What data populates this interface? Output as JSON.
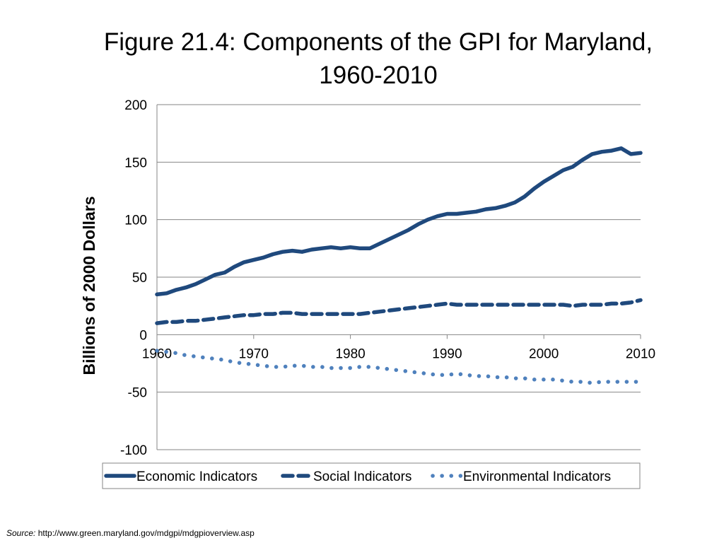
{
  "chart_data": {
    "type": "line",
    "title": "Figure 21.4: Components of the GPI for Maryland, 1960-2010",
    "title_lines": [
      "Figure 21.4: Components of the GPI for Maryland,",
      "1960-2010"
    ],
    "xlabel": "",
    "ylabel": "Billions of 2000 Dollars",
    "xlim": [
      1960,
      2010
    ],
    "ylim": [
      -100,
      200
    ],
    "x_ticks": [
      1960,
      1970,
      1980,
      1990,
      2000,
      2010
    ],
    "x_tick_labels": [
      "1960",
      "1970",
      "1980",
      "1990",
      "2000",
      "2010"
    ],
    "y_ticks": [
      200,
      150,
      100,
      50,
      0,
      -50,
      -100
    ],
    "y_tick_labels": [
      "200",
      "150",
      "100",
      "50",
      "0",
      "-50",
      "-100"
    ],
    "grid": true,
    "legend": "bottom",
    "x": [
      1960,
      1961,
      1962,
      1963,
      1964,
      1965,
      1966,
      1967,
      1968,
      1969,
      1970,
      1971,
      1972,
      1973,
      1974,
      1975,
      1976,
      1977,
      1978,
      1979,
      1980,
      1981,
      1982,
      1983,
      1984,
      1985,
      1986,
      1987,
      1988,
      1989,
      1990,
      1991,
      1992,
      1993,
      1994,
      1995,
      1996,
      1997,
      1998,
      1999,
      2000,
      2001,
      2002,
      2003,
      2004,
      2005,
      2006,
      2007,
      2008,
      2009,
      2010
    ],
    "series": [
      {
        "name": "Economic Indicators",
        "style": "solid",
        "color": "#1f497d",
        "values": [
          35,
          36,
          39,
          41,
          44,
          48,
          52,
          54,
          59,
          63,
          65,
          67,
          70,
          72,
          73,
          72,
          74,
          75,
          76,
          75,
          76,
          75,
          75,
          79,
          83,
          87,
          91,
          96,
          100,
          103,
          105,
          105,
          106,
          107,
          109,
          110,
          112,
          115,
          120,
          127,
          133,
          138,
          143,
          146,
          152,
          157,
          159,
          160,
          162,
          157,
          158
        ]
      },
      {
        "name": "Social Indicators",
        "style": "dash",
        "color": "#1f497d",
        "values": [
          10,
          11,
          11,
          12,
          12,
          13,
          14,
          15,
          16,
          17,
          17,
          18,
          18,
          19,
          19,
          18,
          18,
          18,
          18,
          18,
          18,
          18,
          19,
          20,
          21,
          22,
          23,
          24,
          25,
          26,
          27,
          26,
          26,
          26,
          26,
          26,
          26,
          26,
          26,
          26,
          26,
          26,
          26,
          25,
          26,
          26,
          26,
          27,
          27,
          28,
          30
        ]
      },
      {
        "name": "Environmental Indicators",
        "style": "dot",
        "color": "#4f81bd",
        "values": [
          -14,
          -15,
          -16,
          -18,
          -19,
          -20,
          -21,
          -22,
          -24,
          -25,
          -26,
          -27,
          -28,
          -28,
          -27,
          -27,
          -28,
          -28,
          -29,
          -29,
          -29,
          -28,
          -28,
          -29,
          -30,
          -31,
          -32,
          -33,
          -34,
          -35,
          -35,
          -34,
          -35,
          -36,
          -36,
          -37,
          -37,
          -38,
          -38,
          -39,
          -39,
          -39,
          -40,
          -41,
          -41,
          -42,
          -41,
          -41,
          -41,
          -41,
          -41
        ]
      }
    ]
  },
  "source": {
    "label": "Source:",
    "url": "http://www.green.maryland.gov/mdgpi/mdgpioverview.asp"
  }
}
